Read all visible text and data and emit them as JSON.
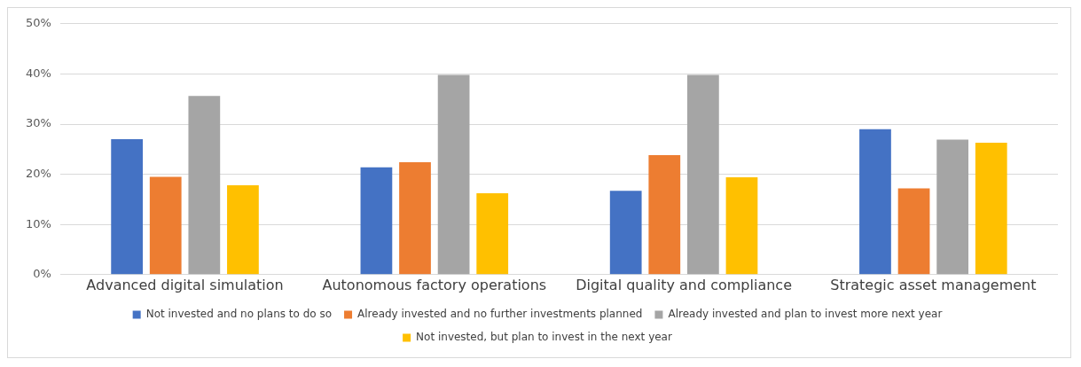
{
  "chart_data": {
    "type": "bar",
    "categories": [
      "Advanced digital simulation",
      "Autonomous factory operations",
      "Digital quality and compliance",
      "Strategic asset management"
    ],
    "series": [
      {
        "name": "Not invested and no plans to do so",
        "color": "#4472c4",
        "values": [
          27.0,
          21.4,
          16.7,
          29.0
        ]
      },
      {
        "name": "Already invested and no further investments planned",
        "color": "#ed7d31",
        "values": [
          19.5,
          22.4,
          23.8,
          17.2
        ]
      },
      {
        "name": "Already invested and plan to invest more next year",
        "color": "#a5a5a5",
        "values": [
          35.6,
          39.8,
          39.8,
          26.9
        ]
      },
      {
        "name": "Not invested, but plan to invest in the next year",
        "color": "#ffc000",
        "values": [
          17.8,
          16.2,
          19.4,
          26.3
        ]
      }
    ],
    "ylim": [
      0,
      50
    ],
    "yticks": [
      {
        "value": 0,
        "label": "0%"
      },
      {
        "value": 10,
        "label": "10%"
      },
      {
        "value": 20,
        "label": "20%"
      },
      {
        "value": 30,
        "label": "30%"
      },
      {
        "value": 40,
        "label": "40%"
      },
      {
        "value": 50,
        "label": "50%"
      }
    ],
    "grid": "y",
    "legend": "bottom"
  }
}
